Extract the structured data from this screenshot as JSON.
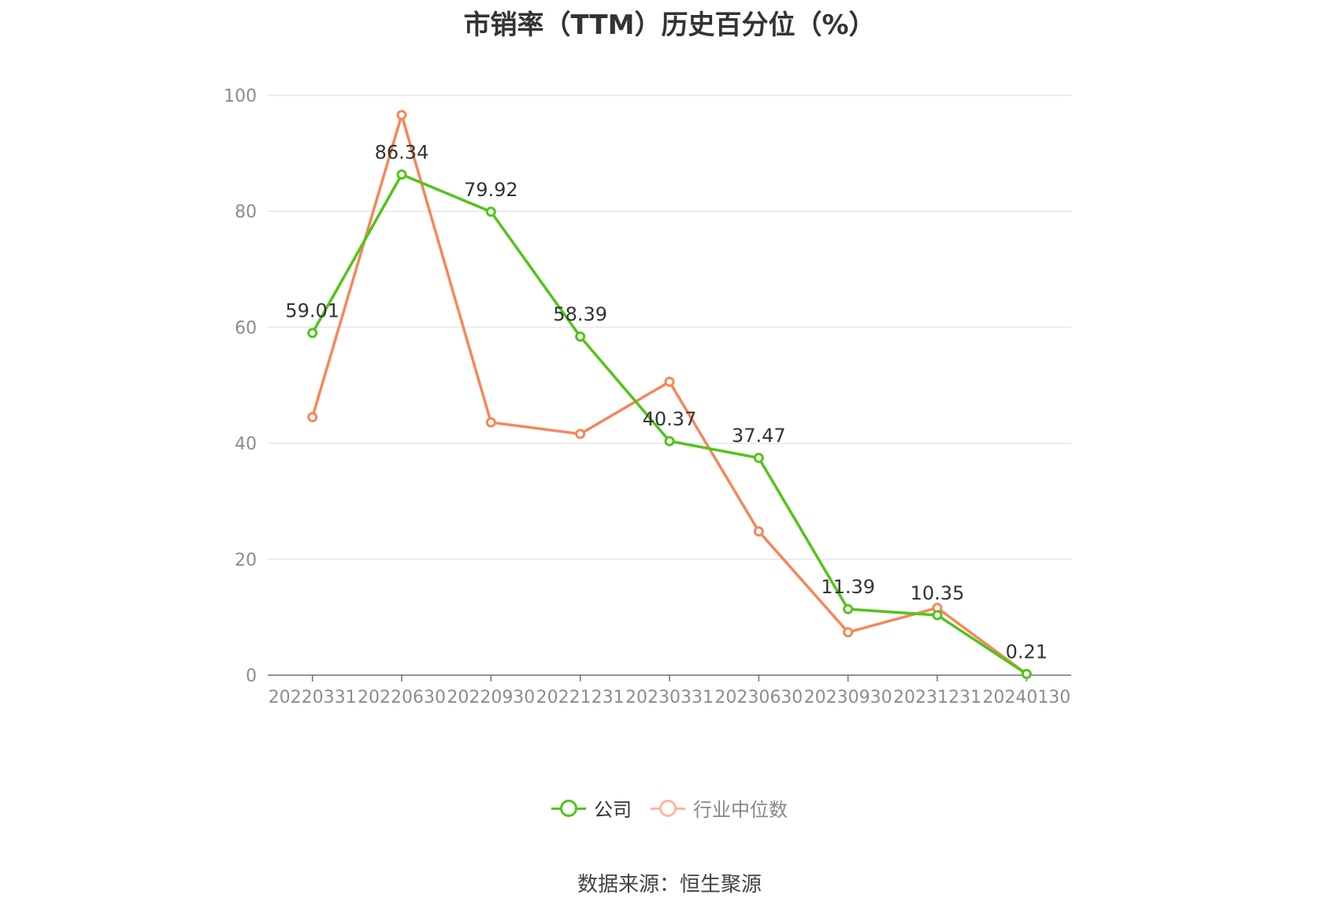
{
  "title": "市销率（TTM）历史百分位（%）",
  "source": "数据来源：恒生聚源",
  "legend": [
    {
      "label": "公司",
      "color": "#52c41a",
      "text_color": "#333333"
    },
    {
      "label": "行业中位数",
      "color": "#f5875a",
      "text_color": "#888888"
    }
  ],
  "chart_data": {
    "type": "line",
    "title": "市销率（TTM）历史百分位（%）",
    "categories": [
      "20220331",
      "20220630",
      "20220930",
      "20221231",
      "20230331",
      "20230630",
      "20230930",
      "20231231",
      "20240130"
    ],
    "ylim": [
      0,
      100
    ],
    "yticks": [
      0,
      20,
      40,
      60,
      80,
      100
    ],
    "grid": true,
    "legend_position": "bottom",
    "series": [
      {
        "name": "公司",
        "color": "#52c41a",
        "values": [
          59.01,
          86.34,
          79.92,
          58.39,
          40.37,
          37.47,
          11.39,
          10.35,
          0.21
        ],
        "labels": [
          "59.01",
          "86.34",
          "79.92",
          "58.39",
          "40.37",
          "37.47",
          "11.39",
          "10.35",
          "0.21"
        ]
      },
      {
        "name": "行业中位数",
        "color": "#f5875a",
        "values": [
          44.5,
          96.6,
          43.6,
          41.6,
          50.6,
          24.8,
          7.4,
          11.6,
          0.2
        ]
      }
    ]
  }
}
